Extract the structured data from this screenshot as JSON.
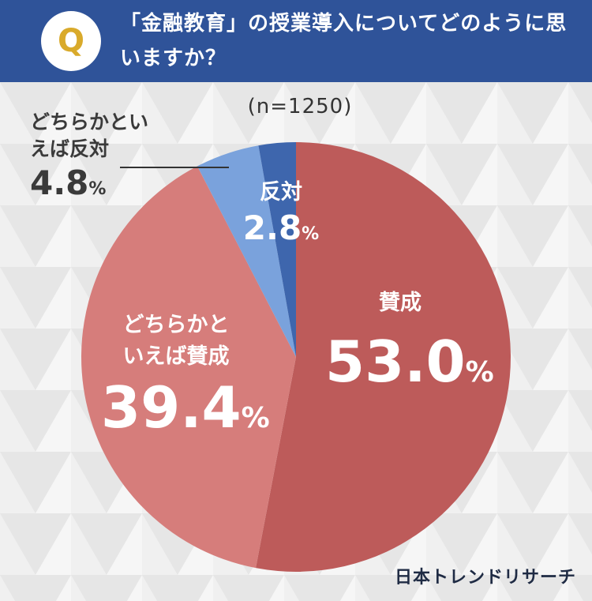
{
  "header": {
    "badge": "Q",
    "question": "「金融教育」の授業導入についてどのように思いますか？"
  },
  "sample_size": "(n=1250)",
  "brand": "日本トレンドリサーチ",
  "colors": {
    "header_bg": "#2f5399",
    "badge_letter": "#d9aa2b",
    "agree": "#bd5b5a",
    "somewhat_agree": "#d67d7b",
    "somewhat_disagree": "#7aa2dc",
    "disagree": "#3e66ad"
  },
  "labels": {
    "agree": {
      "category": "賛成",
      "value": "53.0",
      "unit": "%"
    },
    "somewhat_agree": {
      "category": "どちらかといえば賛成",
      "value": "39.4",
      "unit": "%"
    },
    "disagree": {
      "category": "反対",
      "value": "2.8",
      "unit": "%"
    },
    "somewhat_disagree": {
      "category": "どちらかといえば反対",
      "value": "4.8",
      "unit": "%"
    }
  },
  "chart_data": {
    "type": "pie",
    "title": "「金融教育」の授業導入についてどのように思いますか？",
    "n": 1250,
    "start": "12 o'clock, clockwise",
    "slices": [
      {
        "label": "賛成",
        "value": 53.0,
        "color": "#bd5b5a"
      },
      {
        "label": "どちらかといえば賛成",
        "value": 39.4,
        "color": "#d67d7b"
      },
      {
        "label": "どちらかといえば反対",
        "value": 4.8,
        "color": "#7aa2dc"
      },
      {
        "label": "反対",
        "value": 2.8,
        "color": "#3e66ad"
      }
    ]
  }
}
